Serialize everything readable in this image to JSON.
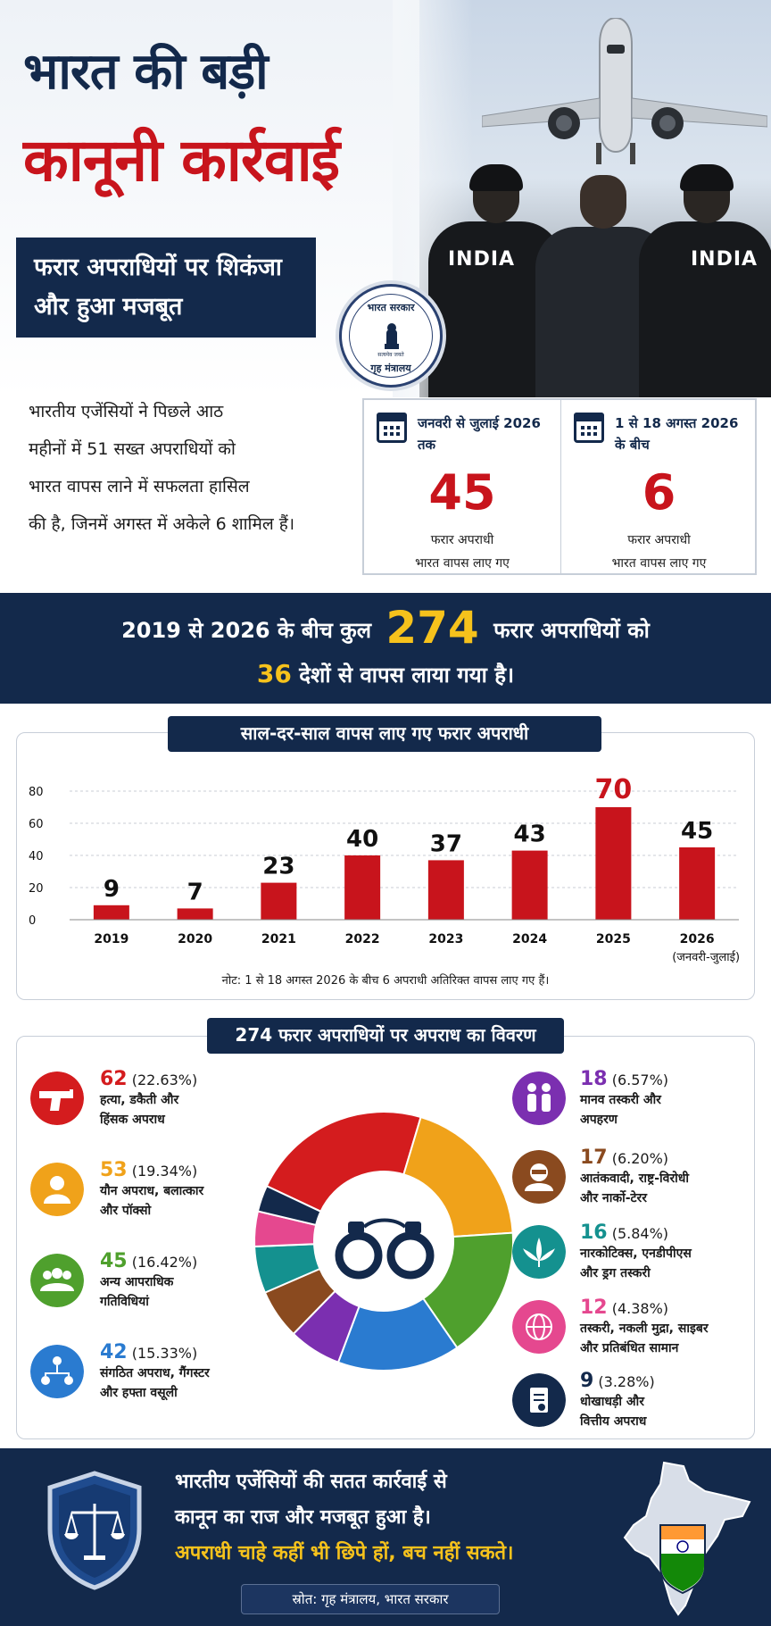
{
  "hero": {
    "title_line1": "भारत की बड़ी",
    "title_line2": "कानूनी कार्रवाई",
    "subtitle_line1": "फरार अपराधियों पर शिकंजा",
    "subtitle_line2": "और हुआ मजबूत",
    "officer_tag": "INDIA",
    "seal_top": "भारत सरकार",
    "seal_bottom": "गृह मंत्रालय",
    "seal_motto": "सत्यमेव जयते"
  },
  "intro": {
    "lines": [
      "भारतीय एजेंसियों ने पिछले आठ",
      "महीनों में  51 सख्त अपराधियों को",
      "भारत वापस लाने में सफलता हासिल",
      "की है, जिनमें अगस्त में अकेले 6 शामिल हैं।"
    ]
  },
  "stats": [
    {
      "period": "जनवरी से जुलाई 2026 तक",
      "value": "45",
      "caption1": "फरार अपराधी",
      "caption2": "भारत वापस लाए गए"
    },
    {
      "period": "1 से 18 अगस्त 2026 के बीच",
      "value": "6",
      "caption1": "फरार अपराधी",
      "caption2": "भारत वापस लाए गए"
    }
  ],
  "banner": {
    "pre": "2019 से 2026 के बीच कुल",
    "total": "274",
    "post": "फरार अपराधियों को",
    "countries": "36",
    "line2": "देशों से वापस लाया गया है।"
  },
  "chart_data": {
    "type": "bar",
    "title": "साल-दर-साल वापस लाए गए फरार अपराधी",
    "categories": [
      "2019",
      "2020",
      "2021",
      "2022",
      "2023",
      "2024",
      "2025",
      "2026"
    ],
    "category_sublabels": [
      "",
      "",
      "",
      "",
      "",
      "",
      "",
      "(जनवरी-जुलाई)"
    ],
    "values": [
      9,
      7,
      23,
      40,
      37,
      43,
      70,
      45
    ],
    "yticks": [
      0,
      20,
      40,
      60,
      80
    ],
    "ylim": [
      0,
      80
    ],
    "bar_color": "#c8141c",
    "highlight_label_color": "#c8141c",
    "label_color": "#111111",
    "note": "नोट:  1 से 18 अगस्त 2026 के बीच 6 अपराधी अतिरिक्त वापस लाए गए हैं।"
  },
  "breakdown": {
    "title": "274 फरार अपराधियों पर अपराध का विवरण",
    "items": [
      {
        "value": "62",
        "pct": "(22.63%)",
        "label1": "हत्या, डकैती और",
        "label2": "हिंसक अपराध",
        "color": "#d41c1e",
        "icon": "pistol-icon"
      },
      {
        "value": "53",
        "pct": "(19.34%)",
        "label1": "यौन अपराध, बलात्कार",
        "label2": "और पॉक्सो",
        "color": "#f0a21a",
        "icon": "person-icon"
      },
      {
        "value": "45",
        "pct": "(16.42%)",
        "label1": "अन्य आपराधिक",
        "label2": "गतिविधियां",
        "color": "#4fa02d",
        "icon": "group-icon"
      },
      {
        "value": "42",
        "pct": "(15.33%)",
        "label1": "संगठित अपराध, गैंगस्टर",
        "label2": "और हफ्ता वसूली",
        "color": "#2a7bd0",
        "icon": "network-icon"
      },
      {
        "value": "18",
        "pct": "(6.57%)",
        "label1": "मानव तस्करी और",
        "label2": "अपहरण",
        "color": "#7b2fb0",
        "icon": "people-icon"
      },
      {
        "value": "17",
        "pct": "(6.20%)",
        "label1": "आतंकवादी, राष्ट्र-विरोधी",
        "label2": "और नार्को-टेरर",
        "color": "#8a4a1f",
        "icon": "masked-person-icon"
      },
      {
        "value": "16",
        "pct": "(5.84%)",
        "label1": "नारकोटिक्स, एनडीपीएस",
        "label2": "और ड्रग तस्करी",
        "color": "#14918f",
        "icon": "cannabis-leaf-icon"
      },
      {
        "value": "12",
        "pct": "(4.38%)",
        "label1": "तस्करी, नकली मुद्रा, साइबर",
        "label2": "और प्रतिबंधित सामान",
        "color": "#e5488f",
        "icon": "globe-icon"
      },
      {
        "value": "9",
        "pct": "(3.28%)",
        "label1": "धोखाधड़ी और",
        "label2": "वित्तीय अपराध",
        "color": "#13294b",
        "icon": "document-icon"
      }
    ],
    "donut_values": [
      62,
      53,
      45,
      42,
      18,
      17,
      16,
      12,
      9
    ]
  },
  "footer": {
    "line1": "भारतीय एजेंसियों की सतत कार्रवाई से",
    "line2": "कानून का राज और मजबूत हुआ है।",
    "line3": "अपराधी चाहे कहीं भी छिपे हों, बच नहीं सकते।",
    "source": "स्रोत: गृह मंत्रालय, भारत सरकार"
  },
  "colors": {
    "navy": "#13294b",
    "red": "#c8141c",
    "yellow": "#f6c21c"
  }
}
